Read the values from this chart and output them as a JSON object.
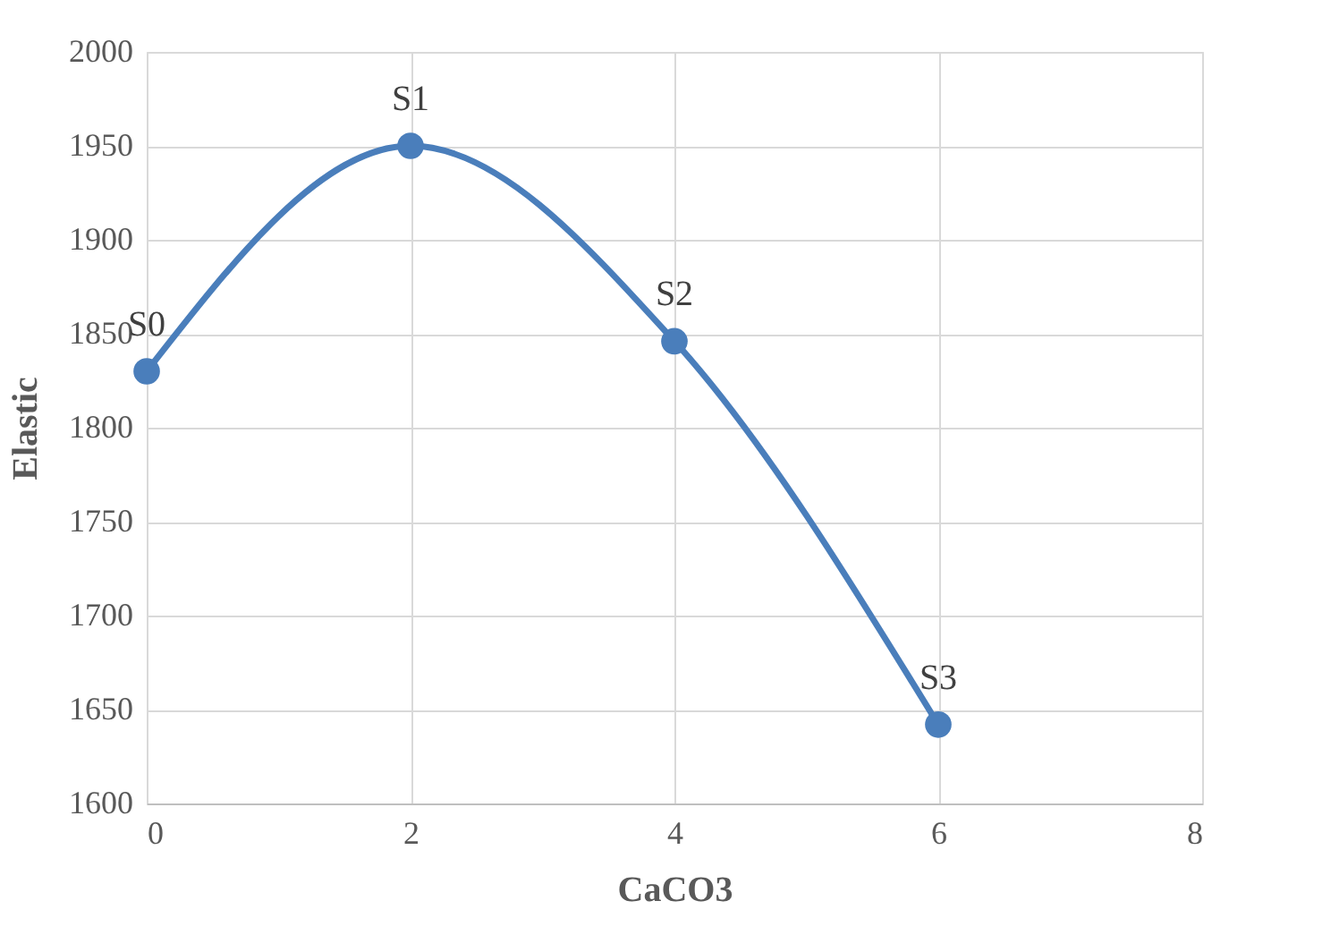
{
  "chart_data": {
    "type": "line",
    "xlabel": "CaCO3",
    "ylabel": "Elastic",
    "x": [
      0,
      2,
      4,
      6
    ],
    "series": [
      {
        "color": "#4a7ebb",
        "values": [
          1830,
          1950,
          1846,
          1642
        ]
      }
    ],
    "xlim": [
      0,
      8
    ],
    "xticks": [
      0,
      2,
      4,
      6,
      8
    ],
    "ylim": [
      1600,
      2000
    ],
    "yticks": [
      1600,
      1650,
      1700,
      1750,
      1800,
      1850,
      1900,
      1950,
      2000
    ],
    "grid": true,
    "marker": "circle",
    "line_style": "solid",
    "annotations": [
      {
        "text": "S0",
        "x": 0,
        "y": 1830
      },
      {
        "text": "S1",
        "x": 2,
        "y": 1950
      },
      {
        "text": "S2",
        "x": 4,
        "y": 1846
      },
      {
        "text": "S3",
        "x": 6,
        "y": 1642
      }
    ]
  }
}
